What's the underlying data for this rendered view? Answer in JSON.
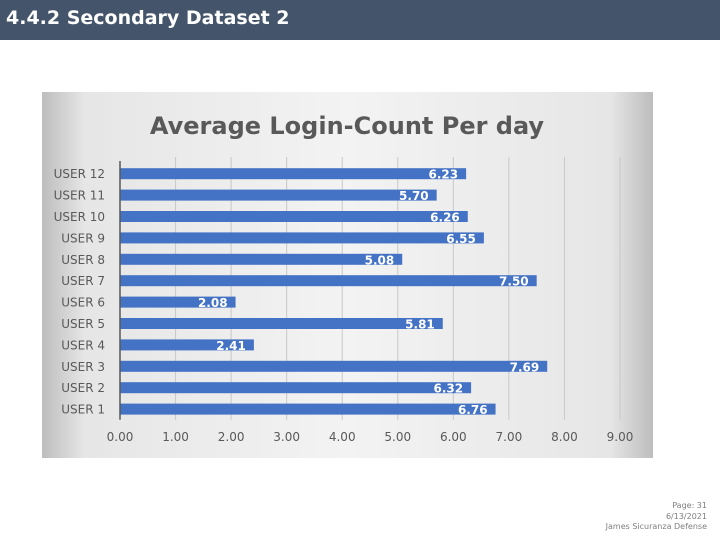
{
  "header": {
    "title": "4.4.2 Secondary Dataset 2"
  },
  "chart_data": {
    "type": "bar",
    "orientation": "horizontal",
    "title": "Average Login-Count Per day",
    "xlabel": "",
    "ylabel": "",
    "categories": [
      "USER 12",
      "USER 11",
      "USER 10",
      "USER 9",
      "USER 8",
      "USER 7",
      "USER 6",
      "USER 5",
      "USER 4",
      "USER 3",
      "USER 2",
      "USER 1"
    ],
    "values": [
      6.23,
      5.7,
      6.26,
      6.55,
      5.08,
      7.5,
      2.08,
      5.81,
      2.41,
      7.69,
      6.32,
      6.76
    ],
    "value_labels": [
      "6.23",
      "5.70",
      "6.26",
      "6.55",
      "5.08",
      "7.50",
      "2.08",
      "5.81",
      "2.41",
      "7.69",
      "6.32",
      "6.76"
    ],
    "x_ticks": [
      "0.00",
      "1.00",
      "2.00",
      "3.00",
      "4.00",
      "5.00",
      "6.00",
      "7.00",
      "8.00",
      "9.00"
    ],
    "xlim": [
      0,
      9
    ],
    "grid": true,
    "legend": "none",
    "bar_color": "#4472c4"
  },
  "footer": {
    "page": "Page: 31",
    "date": "6/13/2021",
    "author": "James Sicuranza Defense"
  }
}
